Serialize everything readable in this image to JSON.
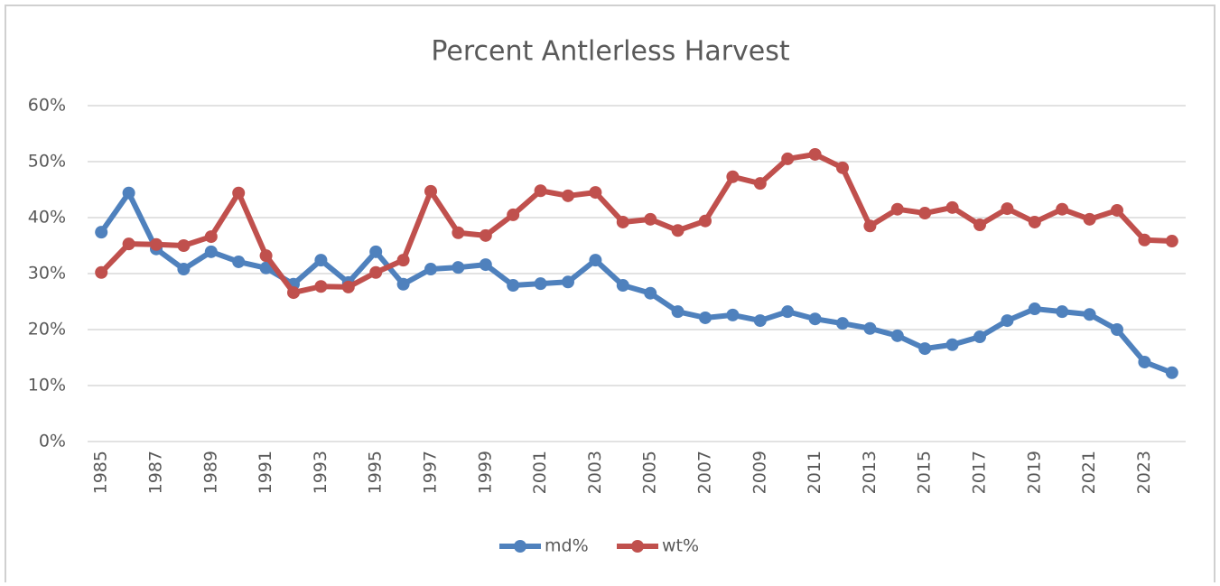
{
  "chart_data": {
    "type": "line",
    "title": "Percent Antlerless Harvest",
    "categories": [
      "1985",
      null,
      "1987",
      null,
      "1989",
      null,
      "1991",
      null,
      "1993",
      null,
      "1995",
      null,
      "1997",
      null,
      "1999",
      null,
      "2001",
      null,
      "2003",
      null,
      "2005",
      null,
      "2007",
      null,
      "2009",
      null,
      "2011",
      null,
      "2013",
      null,
      "2015",
      null,
      "2017",
      null,
      "2019",
      null,
      "2021",
      null,
      "2023",
      null
    ],
    "series": [
      {
        "name": "md%",
        "color": "#4f81bd",
        "values": [
          37.4,
          44.4,
          34.4,
          30.8,
          33.9,
          32.1,
          31.0,
          28.1,
          32.4,
          28.4,
          33.9,
          28.1,
          30.8,
          31.1,
          31.6,
          27.9,
          28.2,
          28.5,
          32.4,
          27.9,
          26.5,
          23.2,
          22.1,
          22.6,
          21.6,
          23.2,
          21.9,
          21.1,
          20.2,
          18.9,
          16.6,
          17.3,
          18.7,
          21.6,
          23.7,
          23.2,
          22.7,
          20.0,
          14.2,
          12.3
        ]
      },
      {
        "name": "wt%",
        "color": "#c0504d",
        "values": [
          30.2,
          35.3,
          35.2,
          35.0,
          36.6,
          44.4,
          33.2,
          26.6,
          27.7,
          27.6,
          30.2,
          32.4,
          44.7,
          37.3,
          36.8,
          40.5,
          44.8,
          43.9,
          44.5,
          39.2,
          39.7,
          37.7,
          39.4,
          47.3,
          46.1,
          50.5,
          51.3,
          48.9,
          38.5,
          41.5,
          40.8,
          41.8,
          38.7,
          41.6,
          39.2,
          41.5,
          39.7,
          41.3,
          36.0,
          35.8
        ]
      }
    ],
    "ylim": [
      0,
      60
    ],
    "yticks": [
      {
        "value": 0,
        "label": "0%"
      },
      {
        "value": 10,
        "label": "10%"
      },
      {
        "value": 20,
        "label": "20%"
      },
      {
        "value": 30,
        "label": "30%"
      },
      {
        "value": 40,
        "label": "40%"
      },
      {
        "value": 50,
        "label": "50%"
      },
      {
        "value": 60,
        "label": "60%"
      }
    ],
    "grid": true,
    "legend": "bottom"
  }
}
